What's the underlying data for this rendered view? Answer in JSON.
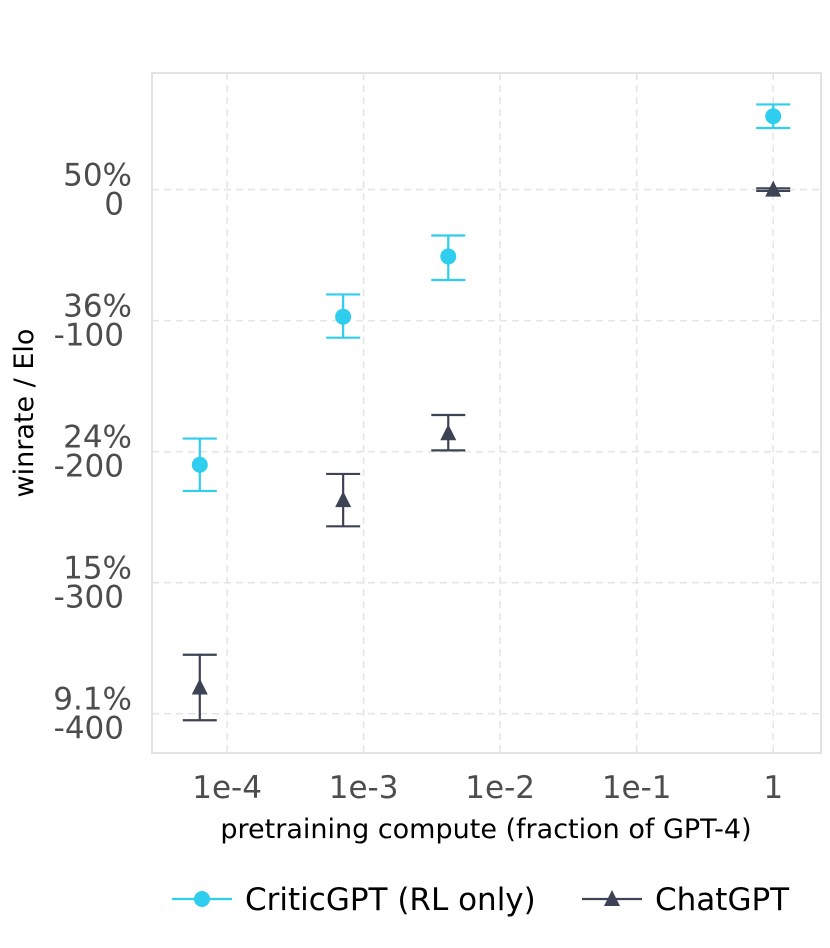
{
  "chart_data": {
    "type": "scatter",
    "title": "",
    "xlabel": "pretraining compute (fraction of GPT-4)",
    "ylabel": "winrate / Elo",
    "x_scale": "log10",
    "x_ticks": [
      {
        "value": -4,
        "label": "1e-4"
      },
      {
        "value": -3,
        "label": "1e-3"
      },
      {
        "value": -2,
        "label": "1e-2"
      },
      {
        "value": -1,
        "label": "1e-1"
      },
      {
        "value": 0,
        "label": "1"
      }
    ],
    "y_ticks": [
      {
        "value": 0,
        "winrate": "50%",
        "elo": "0"
      },
      {
        "value": -100,
        "winrate": "36%",
        "elo": "-100"
      },
      {
        "value": -200,
        "winrate": "24%",
        "elo": "-200"
      },
      {
        "value": -300,
        "winrate": "15%",
        "elo": "-300"
      },
      {
        "value": -400,
        "winrate": "9.1%",
        "elo": "-400"
      }
    ],
    "xlim": [
      -4.55,
      0.35
    ],
    "ylim": [
      -430,
      89
    ],
    "grid": true,
    "legend_position": "bottom",
    "series": [
      {
        "name": "CriticGPT (RL only)",
        "color": "#2fcdee",
        "marker": "circle",
        "points": [
          {
            "x": -4.2,
            "y": -210,
            "lo": -230,
            "hi": -190
          },
          {
            "x": -3.15,
            "y": -97,
            "lo": -113,
            "hi": -80
          },
          {
            "x": -2.38,
            "y": -51,
            "lo": -69,
            "hi": -35
          },
          {
            "x": 0.0,
            "y": 56,
            "lo": 47,
            "hi": 65
          }
        ]
      },
      {
        "name": "ChatGPT",
        "color": "#3d4354",
        "marker": "triangle",
        "points": [
          {
            "x": -4.2,
            "y": -380,
            "lo": -405,
            "hi": -355
          },
          {
            "x": -3.15,
            "y": -237,
            "lo": -257,
            "hi": -217
          },
          {
            "x": -2.38,
            "y": -186,
            "lo": -199,
            "hi": -172
          },
          {
            "x": 0.0,
            "y": 0,
            "lo": -1,
            "hi": 1
          }
        ]
      }
    ]
  }
}
